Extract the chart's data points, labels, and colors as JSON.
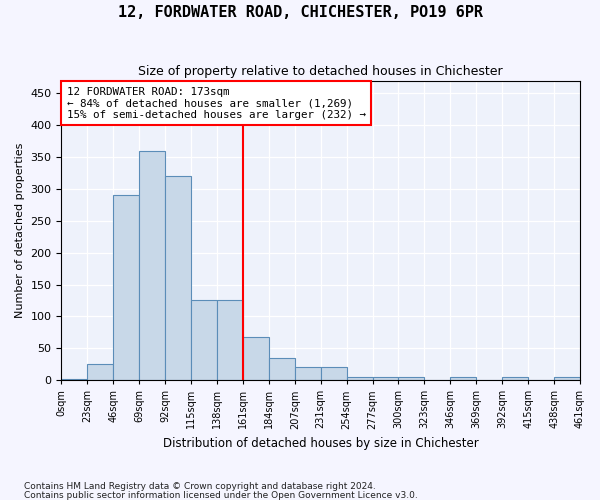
{
  "title": "12, FORDWATER ROAD, CHICHESTER, PO19 6PR",
  "subtitle": "Size of property relative to detached houses in Chichester",
  "xlabel": "Distribution of detached houses by size in Chichester",
  "ylabel": "Number of detached properties",
  "bar_color": "#c8d8e8",
  "bar_edge_color": "#5b8db8",
  "background_color": "#eef2fb",
  "grid_color": "#ffffff",
  "bin_labels": [
    "0sqm",
    "23sqm",
    "46sqm",
    "69sqm",
    "92sqm",
    "115sqm",
    "138sqm",
    "161sqm",
    "184sqm",
    "207sqm",
    "231sqm",
    "254sqm",
    "277sqm",
    "300sqm",
    "323sqm",
    "346sqm",
    "369sqm",
    "392sqm",
    "415sqm",
    "438sqm",
    "461sqm"
  ],
  "bar_heights": [
    2,
    25,
    290,
    360,
    320,
    125,
    125,
    68,
    35,
    20,
    20,
    5,
    5,
    5,
    0,
    5,
    0,
    5,
    0,
    5
  ],
  "ylim": [
    0,
    470
  ],
  "yticks": [
    0,
    50,
    100,
    150,
    200,
    250,
    300,
    350,
    400,
    450
  ],
  "property_label": "12 FORDWATER ROAD: 173sqm",
  "annotation_line1": "← 84% of detached houses are smaller (1,269)",
  "annotation_line2": "15% of semi-detached houses are larger (232) →",
  "vline_x": 7,
  "footnote1": "Contains HM Land Registry data © Crown copyright and database right 2024.",
  "footnote2": "Contains public sector information licensed under the Open Government Licence v3.0."
}
